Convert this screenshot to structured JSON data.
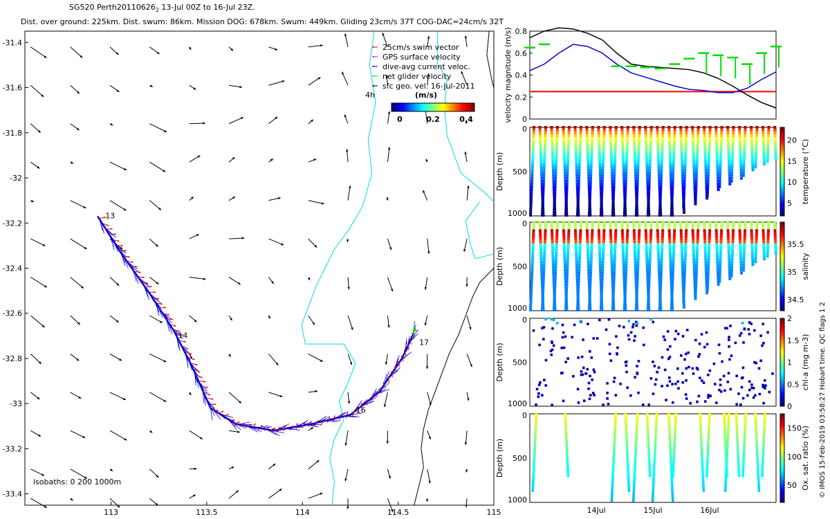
{
  "header": {
    "title": "SG520 Perth20110626",
    "title_sub": "2",
    "title_rest": " 13-Jul 00Z to 16-Jul 23Z.",
    "stats": "Dist. over ground: 225km. Dist. swum: 86km. Mission DOG: 678km. Swum: 449km. Gliding 23cm/s 37T COG-DAC=24cm/s 32T"
  },
  "side_note": "© IMOS 15-Feb-2019 03:58:27 Hobart time. QC flags 1  2",
  "colors": {
    "swim": "#e00000",
    "gps": "#d000d0",
    "current": "#0000e0",
    "net": "#00dd00",
    "vector": "#000000",
    "isobath0": "#00d8e8",
    "isobath1000": "#000000",
    "threshold": "#ff0000"
  },
  "chart_data": [
    {
      "id": "map",
      "type": "scatter",
      "title": "",
      "xlim": [
        112.55,
        115
      ],
      "ylim": [
        -33.45,
        -31.35
      ],
      "x_ticks": [
        "113",
        "113.5",
        "114",
        "114.5",
        "115"
      ],
      "y_ticks": [
        "-31.4",
        "-31.6",
        "-31.8",
        "-32",
        "-32.2",
        "-32.4",
        "-32.6",
        "-32.8",
        "-33",
        "-33.2",
        "-33.4"
      ],
      "legend": [
        {
          "label": "25cm/s swim vector",
          "color": "#e00000"
        },
        {
          "label": "GPS surface velocity",
          "color": "#d000d0"
        },
        {
          "label": "dive-avg current veloc.",
          "color": "#0000e0"
        },
        {
          "label": "net glider velocity",
          "color": "#00dd00"
        },
        {
          "label": "sfc geo. vel. 16-Jul-2011",
          "color": "#000000"
        }
      ],
      "legend_placement": "top-right",
      "legend_extra": "4h",
      "colorbar": {
        "label": "(m/s)",
        "ticks": [
          "0",
          "0.2",
          "0.4"
        ],
        "range": [
          0,
          0.5
        ]
      },
      "isobath_label": "isobaths: 0   200  1000m",
      "track": [
        {
          "lon": 112.93,
          "lat": -32.17
        },
        {
          "lon": 113.05,
          "lat": -32.33
        },
        {
          "lon": 113.2,
          "lat": -32.51
        },
        {
          "lon": 113.33,
          "lat": -32.68
        },
        {
          "lon": 113.42,
          "lat": -32.83
        },
        {
          "lon": 113.52,
          "lat": -33.02
        },
        {
          "lon": 113.65,
          "lat": -33.09
        },
        {
          "lon": 113.85,
          "lat": -33.12
        },
        {
          "lon": 114.05,
          "lat": -33.09
        },
        {
          "lon": 114.25,
          "lat": -33.05
        },
        {
          "lon": 114.4,
          "lat": -32.95
        },
        {
          "lon": 114.52,
          "lat": -32.8
        },
        {
          "lon": 114.58,
          "lat": -32.69
        }
      ],
      "day_labels": [
        {
          "text": "13",
          "lon": 112.97,
          "lat": -32.18
        },
        {
          "text": "14",
          "lon": 113.35,
          "lat": -32.71
        },
        {
          "text": "16",
          "lon": 114.28,
          "lat": -33.04
        },
        {
          "text": "17",
          "lon": 114.61,
          "lat": -32.74
        }
      ],
      "vectors": {
        "grid_lon": [
          112.58,
          112.78,
          112.98,
          113.18,
          113.38,
          113.58,
          113.78,
          113.98,
          114.18,
          114.38,
          114.58,
          114.78
        ],
        "grid_lat": [
          -31.42,
          -31.59,
          -31.76,
          -31.93,
          -32.1,
          -32.27,
          -32.44,
          -32.61,
          -32.78,
          -32.95,
          -33.12,
          -33.29,
          -33.42
        ]
      }
    },
    {
      "id": "velocity",
      "type": "line",
      "ylabel": "velocity magnitude (m/s)",
      "ylim": [
        0,
        0.8
      ],
      "y_ticks": [
        "0",
        "0.2",
        "0.4",
        "0.6",
        "0.8"
      ],
      "threshold": 0.25,
      "series": [
        {
          "color": "#000000",
          "values": [
            0.74,
            0.8,
            0.83,
            0.82,
            0.78,
            0.72,
            0.6,
            0.5,
            0.48,
            0.47,
            0.46,
            0.45,
            0.42,
            0.37,
            0.3,
            0.22,
            0.15,
            0.1
          ]
        },
        {
          "color": "#0000e0",
          "values": [
            0.44,
            0.5,
            0.6,
            0.68,
            0.66,
            0.6,
            0.5,
            0.42,
            0.38,
            0.34,
            0.3,
            0.27,
            0.26,
            0.24,
            0.24,
            0.28,
            0.36,
            0.43
          ]
        },
        {
          "color": "#00dd00",
          "values": [
            0.65,
            0.68,
            null,
            null,
            null,
            null,
            0.48,
            0.48,
            0.47,
            0.46,
            0.5,
            0.55,
            0.6,
            0.58,
            0.56,
            0.5,
            0.6,
            0.66
          ]
        }
      ]
    },
    {
      "id": "temperature",
      "type": "heatmap",
      "ylabel": "Depth (m)",
      "clabel": "temperature (°C)",
      "ylim": [
        0,
        1000
      ],
      "y_ticks": [
        "0",
        "500",
        "1000"
      ],
      "c_ticks": [
        "5",
        "10",
        "15",
        "20"
      ],
      "crange": [
        2,
        23
      ],
      "profiles": 42
    },
    {
      "id": "salinity",
      "type": "heatmap",
      "ylabel": "Depth (m)",
      "clabel": "salinity",
      "ylim": [
        0,
        1000
      ],
      "y_ticks": [
        "0",
        "500",
        "1000"
      ],
      "c_ticks": [
        "34.5",
        "35",
        "35.5"
      ],
      "crange": [
        34.3,
        35.9
      ],
      "profiles": 42
    },
    {
      "id": "chla",
      "type": "scatter",
      "ylabel": "Depth (m)",
      "clabel": "chl-a (mg m-3)",
      "ylim": [
        0,
        1000
      ],
      "y_ticks": [
        "0",
        "500",
        "1000"
      ],
      "c_ticks": [
        "0",
        "0.5",
        "1",
        "1.5",
        "2"
      ],
      "crange": [
        0,
        2
      ]
    },
    {
      "id": "oxygen",
      "type": "scatter",
      "ylabel": "Depth (m)",
      "clabel": "Ox. sat. ratio (%)",
      "ylim": [
        0,
        1000
      ],
      "y_ticks": [
        "0",
        "500",
        "1000"
      ],
      "c_ticks": [
        "50",
        "100",
        "150"
      ],
      "crange": [
        20,
        175
      ],
      "x_ticks": [
        "14Jul",
        "15Jul",
        "16Jul"
      ]
    }
  ]
}
